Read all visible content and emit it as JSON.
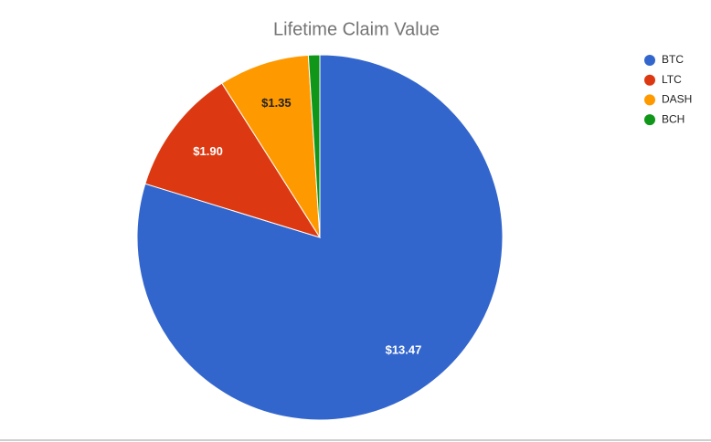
{
  "chart_data": {
    "type": "pie",
    "title": "Lifetime Claim Value",
    "categories": [
      "BTC",
      "LTC",
      "DASH",
      "BCH"
    ],
    "values": [
      13.47,
      1.9,
      1.35,
      0.17
    ],
    "value_labels": [
      "$13.47",
      "$1.90",
      "$1.35",
      null
    ],
    "colors": [
      "#3366cc",
      "#dc3912",
      "#ff9900",
      "#109618"
    ],
    "legend": "right"
  }
}
